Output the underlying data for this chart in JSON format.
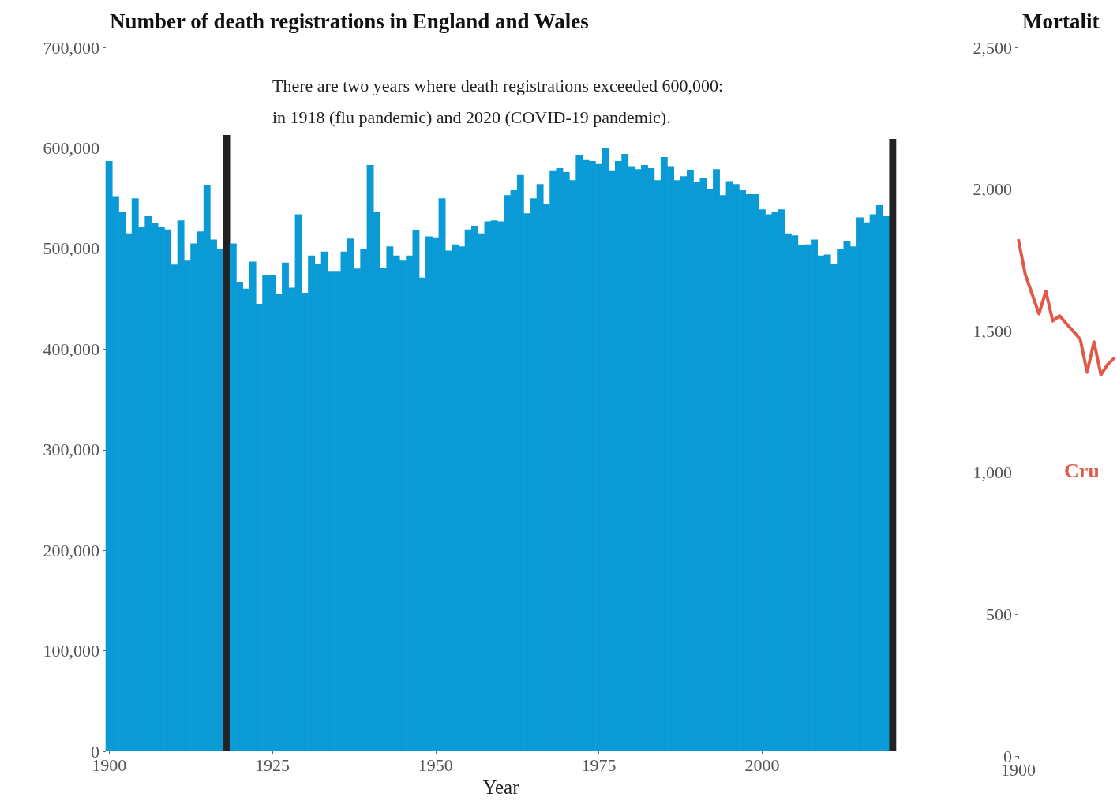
{
  "chart_data": [
    {
      "type": "bar",
      "title": "Number of death registrations in England and Wales",
      "xlabel": "Year",
      "annotations": [
        "There are two years where death registrations exceeded 600,000:\nin 1918 (flu pandemic) and 2020 (COVID-19 pandemic)."
      ],
      "x": [
        1900,
        1901,
        1902,
        1903,
        1904,
        1905,
        1906,
        1907,
        1908,
        1909,
        1910,
        1911,
        1912,
        1913,
        1914,
        1915,
        1916,
        1917,
        1918,
        1919,
        1920,
        1921,
        1922,
        1923,
        1924,
        1925,
        1926,
        1927,
        1928,
        1929,
        1930,
        1931,
        1932,
        1933,
        1934,
        1935,
        1936,
        1937,
        1938,
        1939,
        1940,
        1941,
        1942,
        1943,
        1944,
        1945,
        1946,
        1947,
        1948,
        1949,
        1950,
        1951,
        1952,
        1953,
        1954,
        1955,
        1956,
        1957,
        1958,
        1959,
        1960,
        1961,
        1962,
        1963,
        1964,
        1965,
        1966,
        1967,
        1968,
        1969,
        1970,
        1971,
        1972,
        1973,
        1974,
        1975,
        1976,
        1977,
        1978,
        1979,
        1980,
        1981,
        1982,
        1983,
        1984,
        1985,
        1986,
        1987,
        1988,
        1989,
        1990,
        1991,
        1992,
        1993,
        1994,
        1995,
        1996,
        1997,
        1998,
        1999,
        2000,
        2001,
        2002,
        2003,
        2004,
        2005,
        2006,
        2007,
        2008,
        2009,
        2010,
        2011,
        2012,
        2013,
        2014,
        2015,
        2016,
        2017,
        2018,
        2019,
        2020
      ],
      "values": [
        587000,
        552000,
        536000,
        515000,
        550000,
        521000,
        532000,
        525000,
        521000,
        519000,
        484000,
        528000,
        488000,
        505000,
        517000,
        563000,
        509000,
        500000,
        613000,
        505000,
        467000,
        460000,
        487000,
        445000,
        474000,
        474000,
        455000,
        486000,
        461000,
        534000,
        456000,
        493000,
        485000,
        497000,
        477000,
        477000,
        497000,
        510000,
        480000,
        500000,
        583000,
        536000,
        481000,
        502000,
        493000,
        488000,
        493000,
        518000,
        471000,
        512000,
        511000,
        550000,
        498000,
        504000,
        502000,
        519000,
        522000,
        515000,
        527000,
        528000,
        527000,
        553000,
        558000,
        573000,
        535000,
        550000,
        564000,
        544000,
        577000,
        580000,
        576000,
        568000,
        593000,
        588000,
        587000,
        584000,
        600000,
        577000,
        587000,
        594000,
        582000,
        579000,
        583000,
        580000,
        568000,
        591000,
        582000,
        568000,
        572000,
        578000,
        566000,
        570000,
        559000,
        579000,
        553000,
        567000,
        564000,
        558000,
        554000,
        554000,
        539000,
        534000,
        536000,
        539000,
        515000,
        513000,
        503000,
        504000,
        509000,
        493000,
        494000,
        485000,
        500000,
        507000,
        502000,
        531000,
        526000,
        534000,
        543000,
        532000,
        609000
      ],
      "colors": [
        "#0a9bd7",
        "#0a9bd7",
        "#0a9bd7",
        "#0a9bd7",
        "#0a9bd7",
        "#0a9bd7",
        "#0a9bd7",
        "#0a9bd7",
        "#0a9bd7",
        "#0a9bd7",
        "#0a9bd7",
        "#0a9bd7",
        "#0a9bd7",
        "#0a9bd7",
        "#0a9bd7",
        "#0a9bd7",
        "#0a9bd7",
        "#0a9bd7",
        "#222222",
        "#0a9bd7",
        "#0a9bd7",
        "#0a9bd7",
        "#0a9bd7",
        "#0a9bd7",
        "#0a9bd7",
        "#0a9bd7",
        "#0a9bd7",
        "#0a9bd7",
        "#0a9bd7",
        "#0a9bd7",
        "#0a9bd7",
        "#0a9bd7",
        "#0a9bd7",
        "#0a9bd7",
        "#0a9bd7",
        "#0a9bd7",
        "#0a9bd7",
        "#0a9bd7",
        "#0a9bd7",
        "#0a9bd7",
        "#0a9bd7",
        "#0a9bd7",
        "#0a9bd7",
        "#0a9bd7",
        "#0a9bd7",
        "#0a9bd7",
        "#0a9bd7",
        "#0a9bd7",
        "#0a9bd7",
        "#0a9bd7",
        "#0a9bd7",
        "#0a9bd7",
        "#0a9bd7",
        "#0a9bd7",
        "#0a9bd7",
        "#0a9bd7",
        "#0a9bd7",
        "#0a9bd7",
        "#0a9bd7",
        "#0a9bd7",
        "#0a9bd7",
        "#0a9bd7",
        "#0a9bd7",
        "#0a9bd7",
        "#0a9bd7",
        "#0a9bd7",
        "#0a9bd7",
        "#0a9bd7",
        "#0a9bd7",
        "#0a9bd7",
        "#0a9bd7",
        "#0a9bd7",
        "#0a9bd7",
        "#0a9bd7",
        "#0a9bd7",
        "#0a9bd7",
        "#0a9bd7",
        "#0a9bd7",
        "#0a9bd7",
        "#0a9bd7",
        "#0a9bd7",
        "#0a9bd7",
        "#0a9bd7",
        "#0a9bd7",
        "#0a9bd7",
        "#0a9bd7",
        "#0a9bd7",
        "#0a9bd7",
        "#0a9bd7",
        "#0a9bd7",
        "#0a9bd7",
        "#0a9bd7",
        "#0a9bd7",
        "#0a9bd7",
        "#0a9bd7",
        "#0a9bd7",
        "#0a9bd7",
        "#0a9bd7",
        "#0a9bd7",
        "#0a9bd7",
        "#0a9bd7",
        "#0a9bd7",
        "#0a9bd7",
        "#0a9bd7",
        "#0a9bd7",
        "#0a9bd7",
        "#0a9bd7",
        "#0a9bd7",
        "#0a9bd7",
        "#0a9bd7",
        "#0a9bd7",
        "#0a9bd7",
        "#0a9bd7",
        "#0a9bd7",
        "#0a9bd7",
        "#0a9bd7",
        "#0a9bd7",
        "#0a9bd7",
        "#0a9bd7",
        "#0a9bd7",
        "#222222"
      ],
      "xlim": [
        1899.5,
        2020.5
      ],
      "xticks": [
        1900,
        1925,
        1950,
        1975,
        2000
      ],
      "ylim": [
        0,
        700000
      ],
      "yticks": [
        {
          "value": 0,
          "label": "0"
        },
        {
          "value": 100000,
          "label": "100,000"
        },
        {
          "value": 200000,
          "label": "200,000"
        },
        {
          "value": 300000,
          "label": "300,000"
        },
        {
          "value": 400000,
          "label": "400,000"
        },
        {
          "value": 500000,
          "label": "500,000"
        },
        {
          "value": 600000,
          "label": "600,000"
        },
        {
          "value": 700000,
          "label": "700,000"
        }
      ]
    },
    {
      "type": "line",
      "title": "Mortalit",
      "categories": [
        "1900",
        null,
        null,
        null,
        null,
        null,
        null,
        null,
        null,
        null,
        null,
        null,
        null,
        null,
        null
      ],
      "series": [
        {
          "name": "Cru",
          "color": "#e05a47",
          "values": [
            1823,
            1700,
            1630,
            1560,
            1640,
            1535,
            1553,
            1525,
            1498,
            1470,
            1354,
            1461,
            1345,
            1382,
            1405
          ]
        }
      ],
      "ylim": [
        0,
        2500
      ],
      "yticks": [
        {
          "value": 0,
          "label": "0"
        },
        500,
        {
          "value": 1000,
          "label": "1,000"
        },
        {
          "value": 1500,
          "label": "1,500"
        },
        {
          "value": 2000,
          "label": "2,000"
        },
        {
          "value": 2500,
          "label": "2,500"
        }
      ]
    }
  ]
}
